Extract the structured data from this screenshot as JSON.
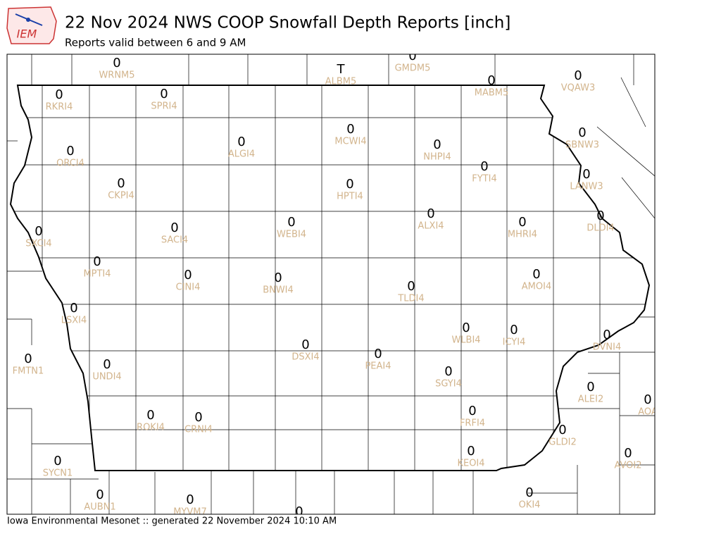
{
  "header": {
    "logo": "IEM",
    "title": "22 Nov 2024 NWS COOP Snowfall Depth Reports [inch]",
    "subtitle": "Reports valid between 6 and 9 AM"
  },
  "stations": [
    {
      "value": 0,
      "id": "WRNM5"
    },
    {
      "value": "T",
      "id": "ALBM5"
    },
    {
      "value": 0,
      "id": "GMDM5"
    },
    {
      "value": 0,
      "id": "MABM5"
    },
    {
      "value": 0,
      "id": "VQAW3"
    },
    {
      "value": 0,
      "id": "RKRI4"
    },
    {
      "value": 0,
      "id": "SPRI4"
    },
    {
      "value": 0,
      "id": "ORCI4"
    },
    {
      "value": 0,
      "id": "ALGI4"
    },
    {
      "value": 0,
      "id": "MCWI4"
    },
    {
      "value": 0,
      "id": "NHPI4"
    },
    {
      "value": 0,
      "id": "SBNW3"
    },
    {
      "value": 0,
      "id": "FYTI4"
    },
    {
      "value": 0,
      "id": "LANW3"
    },
    {
      "value": 0,
      "id": "CKPI4"
    },
    {
      "value": 0,
      "id": "HPTI4"
    },
    {
      "value": 0,
      "id": "ALXI4"
    },
    {
      "value": 0,
      "id": "DLDI4"
    },
    {
      "value": 0,
      "id": "SXCI4"
    },
    {
      "value": 0,
      "id": "SACI4"
    },
    {
      "value": 0,
      "id": "WEBI4"
    },
    {
      "value": 0,
      "id": "MHRI4"
    },
    {
      "value": 0,
      "id": "MPTI4"
    },
    {
      "value": 0,
      "id": "CINI4"
    },
    {
      "value": 0,
      "id": "BNWI4"
    },
    {
      "value": 0,
      "id": "AMOI4"
    },
    {
      "value": 0,
      "id": "TLDI4"
    },
    {
      "value": 0,
      "id": "LSXI4"
    },
    {
      "value": 0,
      "id": "WLBI4"
    },
    {
      "value": 0,
      "id": "ICYI4"
    },
    {
      "value": 0,
      "id": "DVNI4"
    },
    {
      "value": 0,
      "id": "DSXI4"
    },
    {
      "value": 0,
      "id": "PEAI4"
    },
    {
      "value": 0,
      "id": "FMTN1"
    },
    {
      "value": 0,
      "id": "UNDI4"
    },
    {
      "value": 0,
      "id": "SGYI4"
    },
    {
      "value": 0,
      "id": "ALEI2"
    },
    {
      "value": 0,
      "id": "AOA"
    },
    {
      "value": 0,
      "id": "ROKI4"
    },
    {
      "value": 0,
      "id": "CRNI4"
    },
    {
      "value": 0,
      "id": "FRFI4"
    },
    {
      "value": 0,
      "id": "GLDI2"
    },
    {
      "value": 0,
      "id": "KEOI4"
    },
    {
      "value": 0,
      "id": "AVOI2"
    },
    {
      "value": 0,
      "id": "SYCN1"
    },
    {
      "value": 0,
      "id": "MYVM7"
    },
    {
      "value": 0,
      "id": "AUBN1"
    },
    {
      "value": 0,
      "id": "OKI4"
    },
    {
      "value": 0
    }
  ],
  "footer": "Iowa Environmental Mesonet :: generated 22 November 2024 10:10 AM"
}
